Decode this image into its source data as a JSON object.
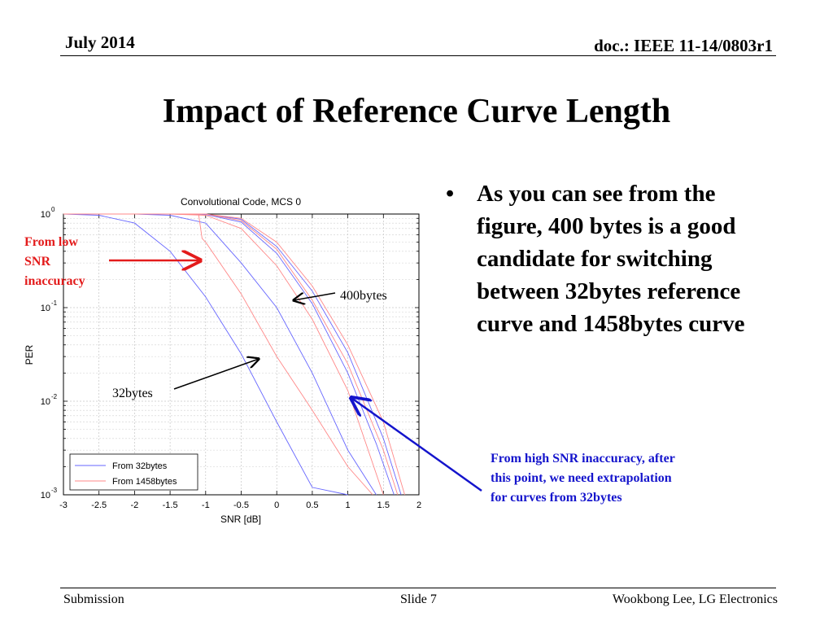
{
  "header": {
    "date": "July 2014",
    "doc": "doc.: IEEE 11-14/0803r1"
  },
  "title": "Impact of Reference Curve Length",
  "bullet": {
    "marker": "•",
    "text": "As you can see from the figure, 400 bytes is a good candidate for switching between 32bytes reference curve and 1458bytes curve"
  },
  "annotations": {
    "low_snr": "From low SNR inaccuracy",
    "high_snr": "From high SNR inaccuracy, after this point, we need extrapolation for curves from 32bytes",
    "label_400": "400bytes",
    "label_32": "32bytes"
  },
  "footer": {
    "left": "Submission",
    "center": "Slide 7",
    "right": "Wookbong Lee, LG Electronics"
  },
  "colors": {
    "annotation_red": "#e31b1b",
    "annotation_blue": "#1414cc",
    "series_32": "#6666ff",
    "series_1458": "#ff8888"
  },
  "chart_data": {
    "type": "line",
    "title": "Convolutional Code, MCS 0",
    "xlabel": "SNR [dB]",
    "ylabel": "PER",
    "xlim": [
      -3,
      2
    ],
    "ylim": [
      0.001,
      1
    ],
    "yscale": "log",
    "grid": true,
    "legend_position": "bottom-left",
    "x_ticks": [
      "-3",
      "-2.5",
      "-2",
      "-1.5",
      "-1",
      "-0.5",
      "0",
      "0.5",
      "1",
      "1.5",
      "2"
    ],
    "y_ticks": [
      {
        "base": "10",
        "exp": "0"
      },
      {
        "base": "10",
        "exp": "-1"
      },
      {
        "base": "10",
        "exp": "-2"
      },
      {
        "base": "10",
        "exp": "-3"
      }
    ],
    "series": [
      {
        "name": "From 32bytes",
        "color": "#6666ff",
        "x": [
          -3,
          -2.5,
          -2,
          -1.5,
          -1,
          -0.5,
          0,
          0.5,
          1
        ],
        "y": [
          1,
          0.97,
          0.8,
          0.4,
          0.13,
          0.032,
          0.006,
          0.0012,
          0.001
        ]
      },
      {
        "name": "",
        "color": "#6666ff",
        "x": [
          -3,
          -2,
          -1.5,
          -1,
          -0.5,
          0,
          0.5,
          1,
          1.4
        ],
        "y": [
          1,
          1,
          0.97,
          0.8,
          0.3,
          0.1,
          0.02,
          0.003,
          0.001
        ]
      },
      {
        "name": "",
        "color": "#6666ff",
        "x": [
          -3,
          -1.5,
          -1,
          -0.5,
          0,
          0.5,
          1,
          1.4,
          1.65
        ],
        "y": [
          1,
          1,
          0.99,
          0.82,
          0.38,
          0.11,
          0.02,
          0.0035,
          0.001
        ]
      },
      {
        "name": "",
        "color": "#6666ff",
        "x": [
          -3,
          -1.5,
          -1,
          -0.5,
          0,
          0.5,
          1,
          1.5,
          1.75
        ],
        "y": [
          1,
          1,
          1,
          0.88,
          0.45,
          0.15,
          0.033,
          0.004,
          0.001
        ]
      },
      {
        "name": "From 1458bytes",
        "color": "#ff8888",
        "x": [
          -3,
          -1.5,
          -1.1,
          -1.05,
          -1,
          -0.5,
          0,
          0.5,
          1,
          1.35
        ],
        "y": [
          1,
          1,
          1,
          0.55,
          0.5,
          0.14,
          0.03,
          0.008,
          0.002,
          0.001
        ]
      },
      {
        "name": "",
        "color": "#ff8888",
        "x": [
          -3,
          -1.5,
          -1,
          -0.5,
          0,
          0.5,
          1,
          1.5
        ],
        "y": [
          1,
          1,
          0.97,
          0.7,
          0.28,
          0.075,
          0.013,
          0.001
        ]
      },
      {
        "name": "",
        "color": "#ff8888",
        "x": [
          -3,
          -1.5,
          -1,
          -0.5,
          0,
          0.5,
          1,
          1.5,
          1.7
        ],
        "y": [
          1,
          1,
          1,
          0.85,
          0.42,
          0.12,
          0.025,
          0.003,
          0.001
        ]
      },
      {
        "name": "",
        "color": "#ff8888",
        "x": [
          -3,
          -1.5,
          -1,
          -0.5,
          0,
          0.5,
          1,
          1.5,
          1.8
        ],
        "y": [
          1,
          1,
          1,
          0.9,
          0.5,
          0.17,
          0.04,
          0.006,
          0.001
        ]
      }
    ]
  }
}
